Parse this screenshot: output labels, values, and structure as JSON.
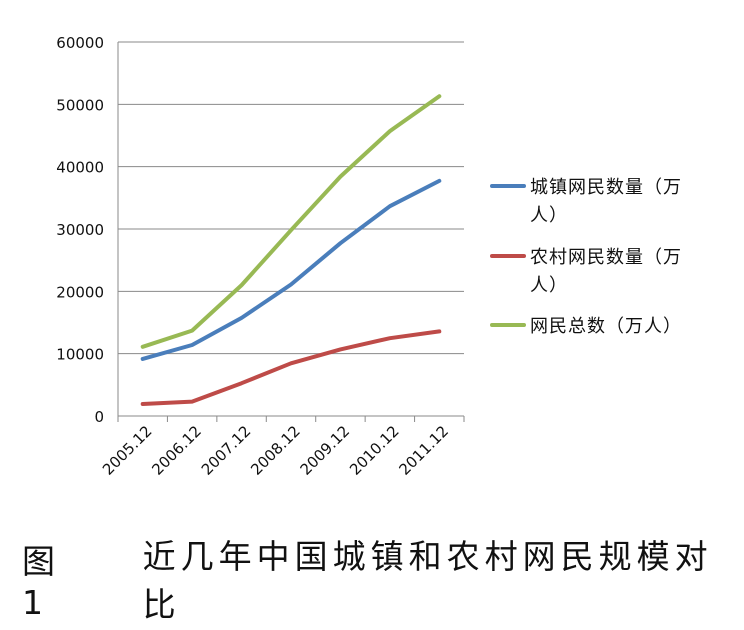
{
  "chart_data": {
    "type": "line",
    "categories": [
      "2005.12",
      "2006.12",
      "2007.12",
      "2008.12",
      "2009.12",
      "2010.12",
      "2011.12"
    ],
    "series": [
      {
        "name": "城镇网民数量（万人）",
        "color": "#4a7ebb",
        "values": [
          9168,
          11389,
          15738,
          21097,
          27719,
          33658,
          37714
        ]
      },
      {
        "name": "农村网民数量（万人）",
        "color": "#be4b48",
        "values": [
          1931,
          2311,
          5262,
          8460,
          10681,
          12484,
          13579
        ]
      },
      {
        "name": "网民总数（万人）",
        "color": "#98b954",
        "values": [
          11100,
          13700,
          21000,
          29800,
          38400,
          45700,
          51300
        ]
      }
    ],
    "yticks": [
      0,
      10000,
      20000,
      30000,
      40000,
      50000,
      60000
    ],
    "ylim": [
      0,
      60000
    ],
    "grid": true,
    "legend_position": "right"
  },
  "caption": {
    "label": "图 1",
    "title": "近几年中国城镇和农村网民规模对比"
  }
}
